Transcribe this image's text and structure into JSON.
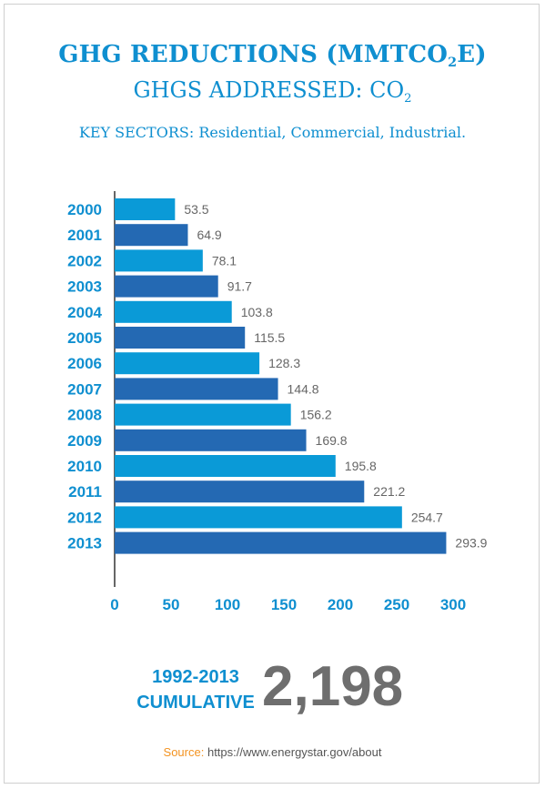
{
  "title_main": "GHG REDUCTIONS (MMTCO",
  "title_main_sub": "2",
  "title_main_end": "E)",
  "title_second": "GHGS ADDRESSED: CO",
  "title_second_sub": "2",
  "sectors": "KEY SECTORS: Residential, Commercial, Industrial.",
  "chart_data": {
    "type": "bar",
    "orientation": "horizontal",
    "categories": [
      "2000",
      "2001",
      "2002",
      "2003",
      "2004",
      "2005",
      "2006",
      "2007",
      "2008",
      "2009",
      "2010",
      "2011",
      "2012",
      "2013"
    ],
    "values": [
      53.5,
      64.9,
      78.1,
      91.7,
      103.8,
      115.5,
      128.3,
      144.8,
      156.2,
      169.8,
      195.8,
      221.2,
      254.7,
      293.9
    ],
    "value_labels": [
      "53.5",
      "64.9",
      "78.1",
      "91.7",
      "103.8",
      "115.5",
      "128.3",
      "144.8",
      "156.2",
      "169.8",
      "195.8",
      "221.2",
      "254.7",
      "293.9"
    ],
    "xlim": [
      0,
      300
    ],
    "xticks": [
      "0",
      "50",
      "100",
      "150",
      "200",
      "250",
      "300"
    ],
    "colors": [
      "#0a9ad7",
      "#2469b3"
    ],
    "label_color": "#0f8fd0",
    "value_label_color": "#666666",
    "grid": false
  },
  "cumulative": {
    "line1": "1992-2013",
    "line2": "CUMULATIVE",
    "value": "2,198"
  },
  "source": {
    "label": "Source:",
    "text": "https://www.energystar.gov/about"
  }
}
